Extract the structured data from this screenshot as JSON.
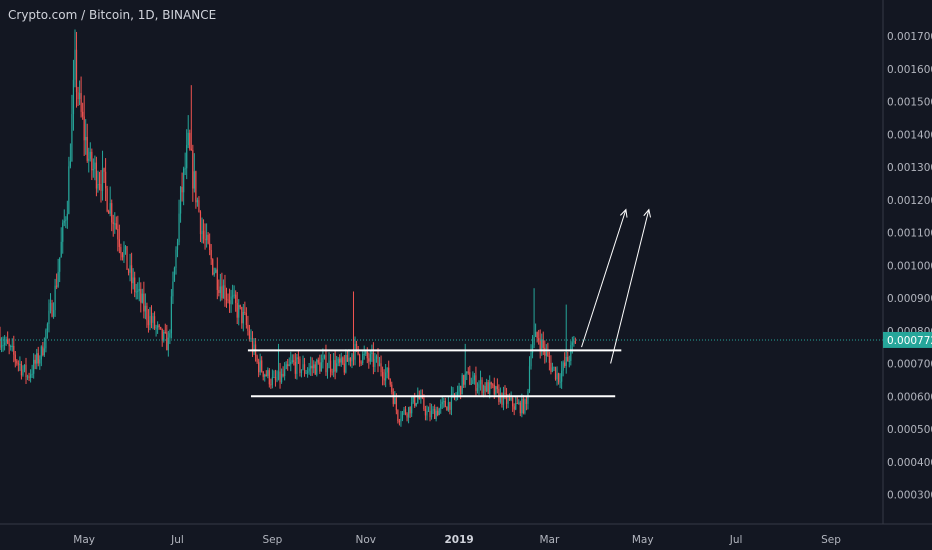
{
  "header": {
    "title": "Crypto.com / Bitcoin, 1D, BINANCE"
  },
  "colors": {
    "background": "#131722",
    "up": "#26a69a",
    "down": "#ef5350",
    "axis_text": "#b2b5be",
    "last_price_line": "#26a69a",
    "drawings": "#ffffff"
  },
  "chart_data": {
    "type": "candlestick",
    "title": "Crypto.com / Bitcoin, 1D, BINANCE",
    "symbol": "Crypto.com / Bitcoin",
    "interval": "1D",
    "exchange": "BINANCE",
    "y_ticks": [
      0.0003,
      0.0004,
      0.0005,
      0.0006,
      0.0007,
      0.0008,
      0.0009,
      0.001,
      0.0011,
      0.0012,
      0.0013,
      0.0014,
      0.0015,
      0.0016,
      0.0017
    ],
    "y_tick_labels": [
      "0.000300",
      "0.000400",
      "0.000500",
      "0.000600",
      "0.000700",
      "0.000800",
      "0.000900",
      "0.001000",
      "0.001100",
      "0.001200",
      "0.001300",
      "0.001400",
      "0.001500",
      "0.001600",
      "0.001700"
    ],
    "x_ticks": [
      {
        "label": "May",
        "date": "2018-05-01"
      },
      {
        "label": "Jul",
        "date": "2018-07-01"
      },
      {
        "label": "Sep",
        "date": "2018-09-01"
      },
      {
        "label": "Nov",
        "date": "2018-11-01"
      },
      {
        "label": "2019",
        "date": "2019-01-01",
        "bold": true
      },
      {
        "label": "Mar",
        "date": "2019-03-01"
      },
      {
        "label": "May",
        "date": "2019-05-01"
      },
      {
        "label": "Jul",
        "date": "2019-07-01"
      },
      {
        "label": "Sep",
        "date": "2019-09-01"
      }
    ],
    "x_range": [
      "2018-03-07",
      "2019-10-05"
    ],
    "y_range": [
      0.00021,
      0.00181
    ],
    "last_price": 0.000772,
    "last_price_label": "0.000772",
    "close_anchors": [
      [
        "2018-03-07",
        0.00078
      ],
      [
        "2018-03-18",
        0.00071
      ],
      [
        "2018-03-25",
        0.00066
      ],
      [
        "2018-04-03",
        0.00073
      ],
      [
        "2018-04-12",
        0.00092
      ],
      [
        "2018-04-20",
        0.0012
      ],
      [
        "2018-04-25",
        0.0016
      ],
      [
        "2018-04-28",
        0.00148
      ],
      [
        "2018-05-05",
        0.0013
      ],
      [
        "2018-05-12",
        0.00127
      ],
      [
        "2018-05-22",
        0.00112
      ],
      [
        "2018-06-01",
        0.00095
      ],
      [
        "2018-06-10",
        0.00086
      ],
      [
        "2018-06-20",
        0.00078
      ],
      [
        "2018-06-25",
        0.00076
      ],
      [
        "2018-06-28",
        0.00093
      ],
      [
        "2018-07-03",
        0.0012
      ],
      [
        "2018-07-08",
        0.00136
      ],
      [
        "2018-07-12",
        0.00125
      ],
      [
        "2018-07-18",
        0.00108
      ],
      [
        "2018-07-28",
        0.00095
      ],
      [
        "2018-08-08",
        0.00087
      ],
      [
        "2018-08-14",
        0.00083
      ],
      [
        "2018-08-22",
        0.0007
      ],
      [
        "2018-09-02",
        0.00064
      ],
      [
        "2018-09-08",
        0.00066
      ],
      [
        "2018-09-14",
        0.0007
      ],
      [
        "2018-09-22",
        0.00068
      ],
      [
        "2018-10-05",
        0.0007
      ],
      [
        "2018-10-18",
        0.00069
      ],
      [
        "2018-10-24",
        0.00074
      ],
      [
        "2018-10-30",
        0.00072
      ],
      [
        "2018-11-08",
        0.0007
      ],
      [
        "2018-11-16",
        0.00066
      ],
      [
        "2018-11-22",
        0.00054
      ],
      [
        "2018-11-29",
        0.00056
      ],
      [
        "2018-12-05",
        0.0006
      ],
      [
        "2018-12-12",
        0.00054
      ],
      [
        "2018-12-22",
        0.00057
      ],
      [
        "2018-12-29",
        0.00059
      ],
      [
        "2019-01-05",
        0.00066
      ],
      [
        "2019-01-12",
        0.00064
      ],
      [
        "2019-01-22",
        0.00062
      ],
      [
        "2019-01-30",
        0.00059
      ],
      [
        "2019-02-07",
        0.00057
      ],
      [
        "2019-02-14",
        0.00057
      ],
      [
        "2019-02-17",
        0.00076
      ],
      [
        "2019-02-22",
        0.00078
      ],
      [
        "2019-03-01",
        0.0007
      ],
      [
        "2019-03-07",
        0.00066
      ],
      [
        "2019-03-12",
        0.0007
      ],
      [
        "2019-03-18",
        0.00077
      ]
    ],
    "annotations": {
      "horizontal_lines": [
        {
          "from": "2018-08-16",
          "to": "2019-04-17",
          "price": 0.00074
        },
        {
          "from": "2018-08-18",
          "to": "2019-04-13",
          "price": 0.0006
        }
      ],
      "arrows": [
        {
          "from": [
            "2019-03-22",
            0.00075
          ],
          "to": [
            "2019-04-20",
            0.00117
          ]
        },
        {
          "from": [
            "2019-04-10",
            0.0007
          ],
          "to": [
            "2019-05-05",
            0.00117
          ]
        }
      ]
    }
  }
}
